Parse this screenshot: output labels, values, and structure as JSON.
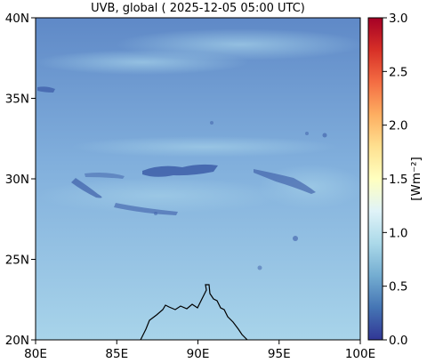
{
  "title": "UVB, global ( 2025-12-05 05:00 UTC)",
  "map": {
    "x_ticks": [
      "80E",
      "85E",
      "90E",
      "95E",
      "100E"
    ],
    "y_ticks": [
      "40N",
      "35N",
      "30N",
      "25N",
      "20N"
    ],
    "lon_range": [
      80,
      100
    ],
    "lat_range": [
      20,
      40
    ]
  },
  "colorbar": {
    "label": "[Wm⁻²]",
    "ticks": [
      "3.0",
      "2.5",
      "2.0",
      "1.5",
      "1.0",
      "0.5",
      "0.0"
    ],
    "range": [
      0.0,
      3.0
    ],
    "colormap": "RdYlBu_r",
    "colors": [
      "#313695",
      "#4575b4",
      "#74add1",
      "#abd9e9",
      "#e0f3f8",
      "#ffffbf",
      "#fee090",
      "#fdae61",
      "#f46d43",
      "#d73027",
      "#a50026"
    ]
  },
  "colors": {
    "background_high": "#5f89c7",
    "background_mid": "#81afdc",
    "background_low": "#a8d4ea",
    "cloud_dark": "#3d5ea8",
    "coastline": "#000000"
  }
}
